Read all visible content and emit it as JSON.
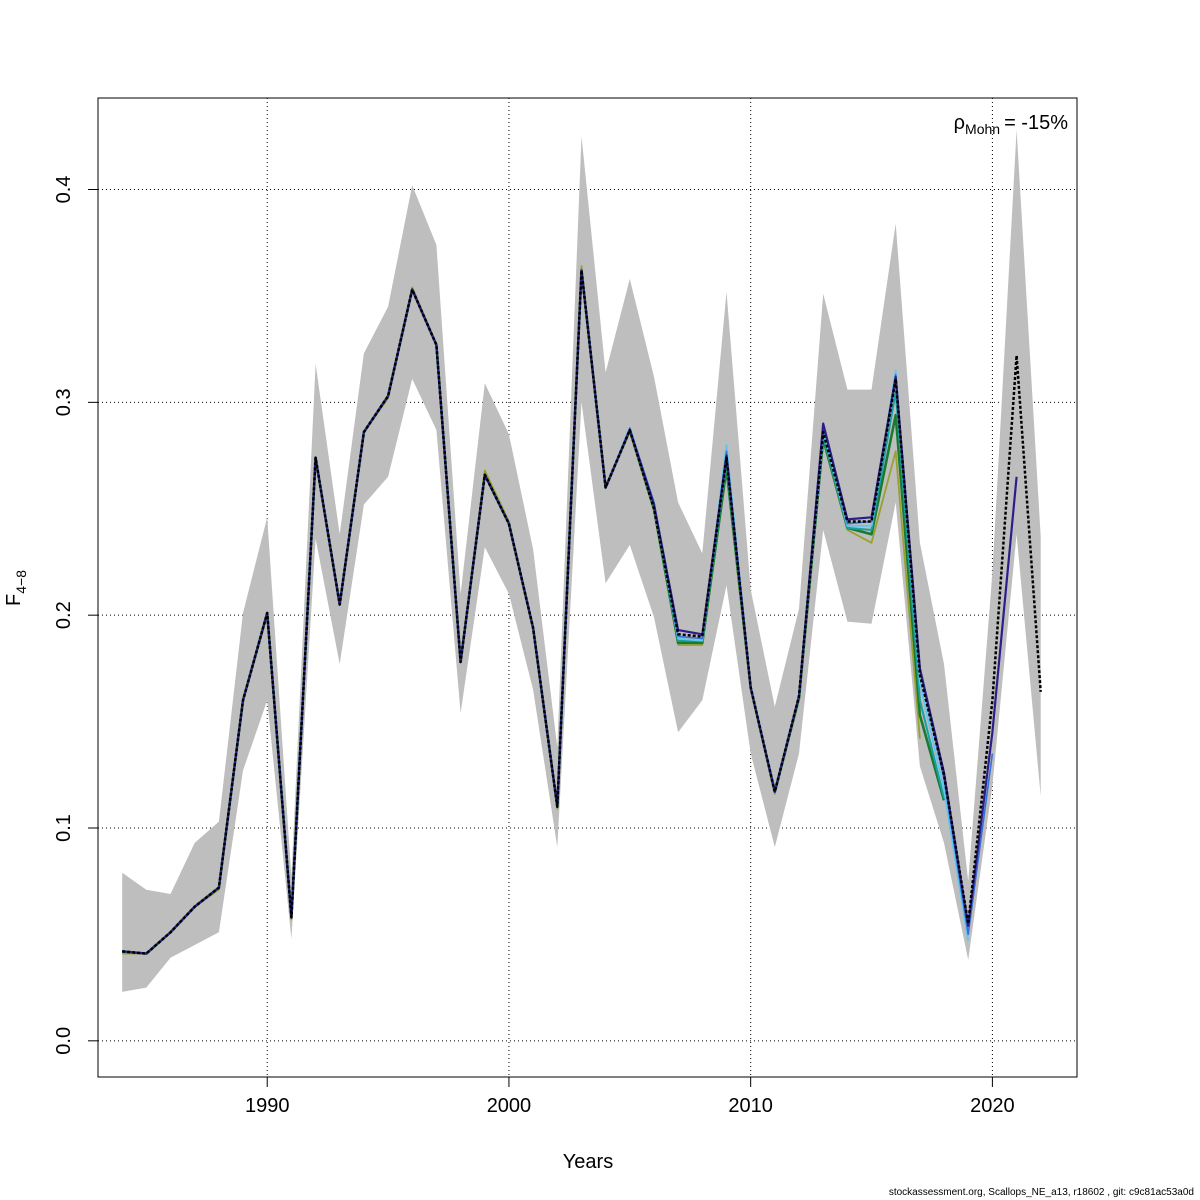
{
  "chart_data": {
    "type": "line",
    "xlabel": "Years",
    "ylabel_base": "F",
    "ylabel_sub": "4−8",
    "xlim": [
      1983.0,
      2023.5
    ],
    "ylim": [
      -0.017,
      0.443
    ],
    "x_ticks": [
      1990,
      2000,
      2010,
      2020
    ],
    "x_tick_labels": [
      "1990",
      "2000",
      "2010",
      "2020"
    ],
    "y_ticks": [
      0.0,
      0.1,
      0.2,
      0.3,
      0.4
    ],
    "y_tick_labels": [
      "0.0",
      "0.1",
      "0.2",
      "0.3",
      "0.4"
    ],
    "grid": true,
    "mohn_rho": {
      "symbol": "ρ",
      "subscript": "Mohn",
      "value": "= -15%"
    },
    "confidence_band": {
      "color": "#bebebe",
      "x": [
        1984,
        1985,
        1986,
        1987,
        1988,
        1989,
        1990,
        1991,
        1992,
        1993,
        1994,
        1995,
        1996,
        1997,
        1998,
        1999,
        2000,
        2001,
        2002,
        2003,
        2004,
        2005,
        2006,
        2007,
        2008,
        2009,
        2010,
        2011,
        2012,
        2013,
        2014,
        2015,
        2016,
        2017,
        2018,
        2019,
        2020,
        2021,
        2022
      ],
      "lower": [
        0.023,
        0.025,
        0.039,
        0.045,
        0.051,
        0.127,
        0.16,
        0.048,
        0.236,
        0.177,
        0.252,
        0.265,
        0.311,
        0.287,
        0.154,
        0.232,
        0.21,
        0.165,
        0.091,
        0.3,
        0.215,
        0.233,
        0.199,
        0.145,
        0.16,
        0.214,
        0.135,
        0.091,
        0.135,
        0.24,
        0.197,
        0.196,
        0.253,
        0.129,
        0.093,
        0.038,
        0.12,
        0.238,
        0.115
      ],
      "upper": [
        0.079,
        0.071,
        0.069,
        0.093,
        0.103,
        0.201,
        0.246,
        0.077,
        0.318,
        0.238,
        0.323,
        0.345,
        0.402,
        0.374,
        0.21,
        0.309,
        0.285,
        0.231,
        0.138,
        0.425,
        0.314,
        0.358,
        0.312,
        0.253,
        0.229,
        0.352,
        0.212,
        0.157,
        0.203,
        0.351,
        0.306,
        0.306,
        0.384,
        0.234,
        0.177,
        0.075,
        0.22,
        0.428,
        0.237
      ]
    },
    "series": [
      {
        "color": "#000000",
        "dashed": true,
        "width": 2.5,
        "x": [
          1984,
          1985,
          1986,
          1987,
          1988,
          1989,
          1990,
          1991,
          1992,
          1993,
          1994,
          1995,
          1996,
          1997,
          1998,
          1999,
          2000,
          2001,
          2002,
          2003,
          2004,
          2005,
          2006,
          2007,
          2008,
          2009,
          2010,
          2011,
          2012,
          2013,
          2014,
          2015,
          2016,
          2017,
          2018,
          2019,
          2020,
          2021,
          2022
        ],
        "values": [
          0.042,
          0.041,
          0.051,
          0.063,
          0.072,
          0.16,
          0.201,
          0.058,
          0.274,
          0.205,
          0.286,
          0.303,
          0.353,
          0.327,
          0.178,
          0.266,
          0.243,
          0.194,
          0.11,
          0.362,
          0.26,
          0.287,
          0.25,
          0.191,
          0.19,
          0.274,
          0.166,
          0.117,
          0.162,
          0.286,
          0.244,
          0.244,
          0.311,
          0.172,
          0.125,
          0.055,
          0.16,
          0.322,
          0.164
        ]
      },
      {
        "color": "#2a1f8a",
        "dashed": false,
        "width": 2.2,
        "x": [
          1984,
          1985,
          1986,
          1987,
          1988,
          1989,
          1990,
          1991,
          1992,
          1993,
          1994,
          1995,
          1996,
          1997,
          1998,
          1999,
          2000,
          2001,
          2002,
          2003,
          2004,
          2005,
          2006,
          2007,
          2008,
          2009,
          2010,
          2011,
          2012,
          2013,
          2014,
          2015,
          2016,
          2017,
          2018,
          2019,
          2020,
          2021
        ],
        "values": [
          0.042,
          0.041,
          0.051,
          0.063,
          0.072,
          0.16,
          0.201,
          0.058,
          0.274,
          0.205,
          0.286,
          0.303,
          0.353,
          0.327,
          0.178,
          0.266,
          0.243,
          0.194,
          0.11,
          0.362,
          0.26,
          0.287,
          0.252,
          0.193,
          0.191,
          0.275,
          0.166,
          0.117,
          0.162,
          0.29,
          0.245,
          0.246,
          0.312,
          0.175,
          0.126,
          0.054,
          0.145,
          0.265
        ]
      },
      {
        "color": "#3a6fd8",
        "dashed": false,
        "width": 1.6,
        "x": [
          1984,
          1985,
          1986,
          1987,
          1988,
          1989,
          1990,
          1991,
          1992,
          1993,
          1994,
          1995,
          1996,
          1997,
          1998,
          1999,
          2000,
          2001,
          2002,
          2003,
          2004,
          2005,
          2006,
          2007,
          2008,
          2009,
          2010,
          2011,
          2012,
          2013,
          2014,
          2015,
          2016,
          2017,
          2018,
          2019,
          2020
        ],
        "values": [
          0.042,
          0.041,
          0.051,
          0.063,
          0.072,
          0.16,
          0.201,
          0.058,
          0.274,
          0.205,
          0.286,
          0.303,
          0.353,
          0.327,
          0.178,
          0.266,
          0.243,
          0.194,
          0.11,
          0.362,
          0.26,
          0.288,
          0.253,
          0.19,
          0.189,
          0.277,
          0.166,
          0.118,
          0.162,
          0.29,
          0.243,
          0.244,
          0.313,
          0.174,
          0.123,
          0.05,
          0.135
        ]
      },
      {
        "color": "#5ec8f0",
        "dashed": false,
        "width": 1.8,
        "x": [
          1984,
          1985,
          1986,
          1987,
          1988,
          1989,
          1990,
          1991,
          1992,
          1993,
          1994,
          1995,
          1996,
          1997,
          1998,
          1999,
          2000,
          2001,
          2002,
          2003,
          2004,
          2005,
          2006,
          2007,
          2008,
          2009,
          2010,
          2011,
          2012,
          2013,
          2014,
          2015,
          2016,
          2017,
          2018,
          2019
        ],
        "values": [
          0.042,
          0.041,
          0.051,
          0.063,
          0.072,
          0.16,
          0.201,
          0.058,
          0.274,
          0.205,
          0.286,
          0.303,
          0.353,
          0.327,
          0.178,
          0.266,
          0.243,
          0.194,
          0.11,
          0.362,
          0.26,
          0.288,
          0.252,
          0.189,
          0.188,
          0.28,
          0.167,
          0.118,
          0.162,
          0.287,
          0.242,
          0.242,
          0.315,
          0.168,
          0.118,
          0.047
        ]
      },
      {
        "color": "#1aa0a0",
        "dashed": false,
        "width": 2.0,
        "x": [
          1984,
          1985,
          1986,
          1987,
          1988,
          1989,
          1990,
          1991,
          1992,
          1993,
          1994,
          1995,
          1996,
          1997,
          1998,
          1999,
          2000,
          2001,
          2002,
          2003,
          2004,
          2005,
          2006,
          2007,
          2008,
          2009,
          2010,
          2011,
          2012,
          2013,
          2014,
          2015,
          2016,
          2017,
          2018
        ],
        "values": [
          0.042,
          0.041,
          0.051,
          0.063,
          0.072,
          0.16,
          0.201,
          0.058,
          0.274,
          0.205,
          0.286,
          0.303,
          0.353,
          0.327,
          0.178,
          0.266,
          0.243,
          0.194,
          0.11,
          0.362,
          0.26,
          0.287,
          0.251,
          0.188,
          0.188,
          0.272,
          0.166,
          0.117,
          0.162,
          0.284,
          0.241,
          0.24,
          0.305,
          0.16,
          0.114
        ]
      },
      {
        "color": "#1a7a30",
        "dashed": false,
        "width": 2.6,
        "x": [
          1984,
          1985,
          1986,
          1987,
          1988,
          1989,
          1990,
          1991,
          1992,
          1993,
          1994,
          1995,
          1996,
          1997,
          1998,
          1999,
          2000,
          2001,
          2002,
          2003,
          2004,
          2005,
          2006,
          2007,
          2008,
          2009,
          2010,
          2011,
          2012,
          2013,
          2014,
          2015,
          2016,
          2017,
          2018
        ],
        "values": [
          0.042,
          0.041,
          0.051,
          0.063,
          0.072,
          0.16,
          0.201,
          0.058,
          0.274,
          0.205,
          0.286,
          0.303,
          0.353,
          0.327,
          0.178,
          0.266,
          0.243,
          0.194,
          0.11,
          0.362,
          0.26,
          0.287,
          0.25,
          0.187,
          0.187,
          0.269,
          0.166,
          0.117,
          0.161,
          0.283,
          0.241,
          0.238,
          0.294,
          0.153,
          0.113
        ]
      },
      {
        "color": "#9aa030",
        "dashed": false,
        "width": 1.8,
        "x": [
          1984,
          1985,
          1986,
          1987,
          1988,
          1989,
          1990,
          1991,
          1992,
          1993,
          1994,
          1995,
          1996,
          1997,
          1998,
          1999,
          2000,
          2001,
          2002,
          2003,
          2004,
          2005,
          2006,
          2007,
          2008,
          2009,
          2010,
          2011,
          2012,
          2013,
          2014,
          2015,
          2016,
          2017
        ],
        "values": [
          0.041,
          0.041,
          0.051,
          0.063,
          0.071,
          0.16,
          0.2,
          0.057,
          0.274,
          0.205,
          0.286,
          0.302,
          0.354,
          0.327,
          0.178,
          0.268,
          0.244,
          0.194,
          0.109,
          0.364,
          0.26,
          0.286,
          0.249,
          0.186,
          0.186,
          0.268,
          0.165,
          0.116,
          0.161,
          0.282,
          0.24,
          0.234,
          0.277,
          0.142
        ]
      }
    ]
  },
  "footer": "stockassessment.org, Scallops_NE_a13, r18602 , git: c9c81ac53a0d"
}
